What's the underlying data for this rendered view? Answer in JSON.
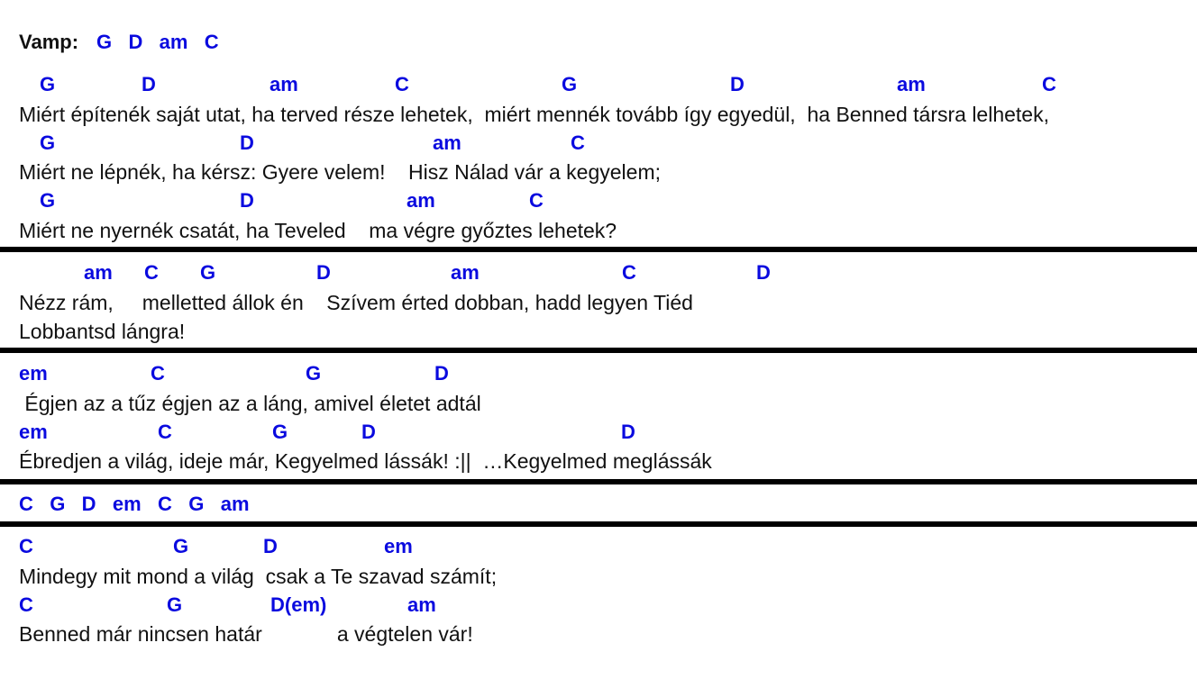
{
  "vamp": {
    "label": "Vamp:",
    "chords": "G   D   am   C"
  },
  "verse": {
    "chords_1": "G",
    "chords_1b": "D",
    "chords_1c": "am",
    "chords_1d": "C",
    "chords_1e": "G",
    "chords_1f": "D",
    "chords_1g": "am",
    "chords_1h": "C",
    "lyric_1": "Miért építenék saját utat, ha terved része lehetek,  miért mennék tovább így egyedül,  ha Benned társra lelhetek,",
    "chords_2a": "G",
    "chords_2b": "D",
    "chords_2c": "am",
    "chords_2d": "C",
    "lyric_2": "Miért ne lépnék, ha kérsz: Gyere velem!    Hisz Nálad vár a kegyelem;",
    "chords_3a": "G",
    "chords_3b": "D",
    "chords_3c": "am",
    "chords_3d": "C",
    "lyric_3": "Miért ne nyernék csatát, ha Teveled    ma végre győztes lehetek?"
  },
  "prechorus": {
    "chords_a": "am",
    "chords_b": "C",
    "chords_c": "G",
    "chords_d": "D",
    "chords_e": "am",
    "chords_f": "C",
    "chords_g": "D",
    "lyric_1": "Nézz rám,     melletted állok én    Szívem érted dobban, hadd legyen Tiéd",
    "lyric_2": "Lobbantsd lángra!"
  },
  "chorus": {
    "chords_1a": "em",
    "chords_1b": "C",
    "chords_1c": "G",
    "chords_1d": "D",
    "lyric_1": " Égjen az a tűz égjen az a láng, amivel életet adtál",
    "chords_2a": "em",
    "chords_2b": "C",
    "chords_2c": "G",
    "chords_2d": "D",
    "chords_2e": "D",
    "lyric_2": "Ébredjen a világ, ideje már, Kegyelmed lássák! :||  …Kegyelmed meglássák"
  },
  "interlude": {
    "chords": "C   G   D   em   C   G   am"
  },
  "bridge": {
    "chords_1a": "C",
    "chords_1b": "G",
    "chords_1c": "D",
    "chords_1d": "em",
    "lyric_1": "Mindegy mit mond a világ  csak a Te szavad számít;",
    "chords_2a": "C",
    "chords_2b": "G",
    "chords_2c": "D(em)",
    "chords_2d": "am",
    "lyric_2": "Benned már nincsen határ             a végtelen vár!"
  }
}
